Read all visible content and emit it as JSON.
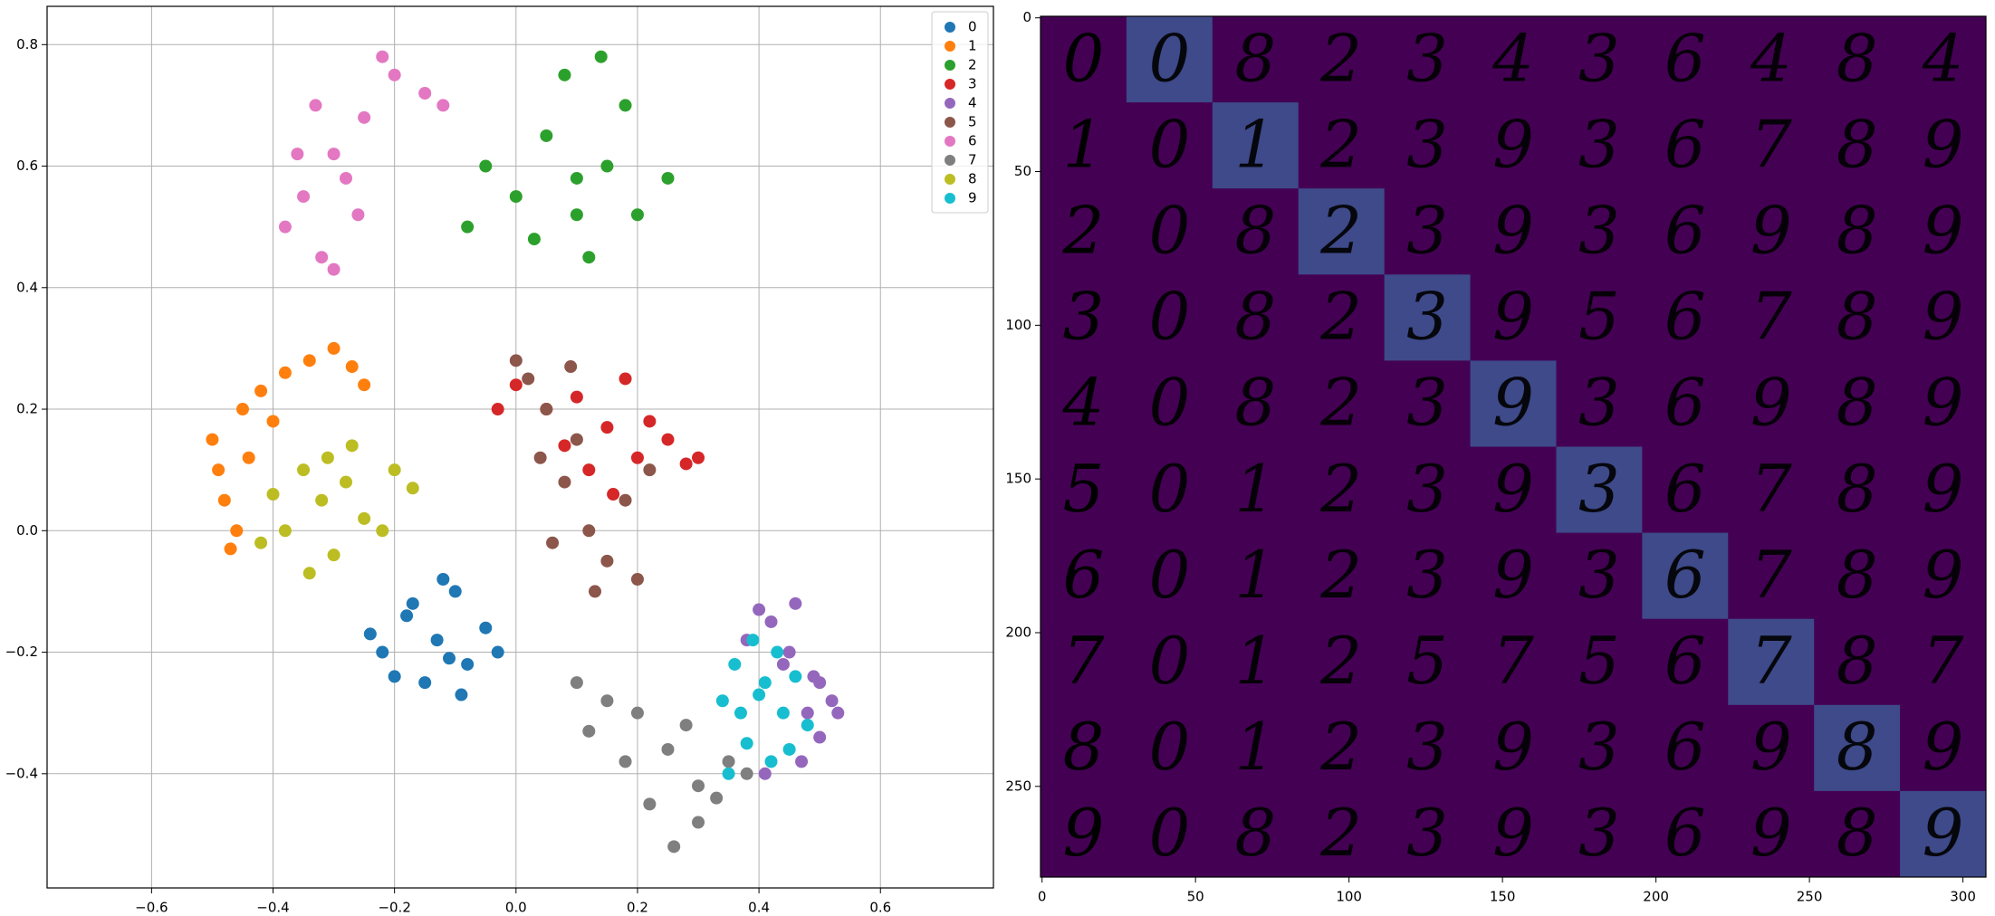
{
  "chart_data": [
    {
      "type": "scatter",
      "grid": true,
      "legend": "upper right",
      "xlim": [
        -0.772,
        0.786
      ],
      "ylim": [
        -0.588,
        0.863
      ],
      "xticks": [
        {
          "value": -0.6,
          "label": "−0.6"
        },
        {
          "value": -0.4,
          "label": "−0.4"
        },
        {
          "value": -0.2,
          "label": "−0.2"
        },
        {
          "value": 0,
          "label": "0.0"
        },
        0.2,
        0.4,
        0.6
      ],
      "yticks": [
        {
          "value": -0.4,
          "label": "−0.4"
        },
        {
          "value": -0.2,
          "label": "−0.2"
        },
        {
          "value": 0,
          "label": "0.0"
        },
        0.2,
        0.4,
        0.6,
        0.8
      ],
      "series": [
        {
          "name": "0",
          "color": "#1f77b4",
          "x": [
            -0.13,
            -0.18,
            -0.08,
            -0.22,
            -0.1,
            -0.15,
            -0.05,
            -0.2,
            -0.12,
            -0.03,
            -0.17,
            -0.09,
            -0.24,
            -0.11
          ],
          "y": [
            -0.18,
            -0.14,
            -0.22,
            -0.2,
            -0.1,
            -0.25,
            -0.16,
            -0.24,
            -0.08,
            -0.2,
            -0.12,
            -0.27,
            -0.17,
            -0.21
          ]
        },
        {
          "name": "1",
          "color": "#ff7f0e",
          "x": [
            -0.5,
            -0.48,
            -0.45,
            -0.42,
            -0.38,
            -0.34,
            -0.3,
            -0.27,
            -0.25,
            -0.47,
            -0.49,
            -0.44,
            -0.4,
            -0.46
          ],
          "y": [
            0.15,
            0.05,
            0.2,
            0.23,
            0.26,
            0.28,
            0.3,
            0.27,
            0.24,
            -0.03,
            0.1,
            0.12,
            0.18,
            0.0
          ]
        },
        {
          "name": "2",
          "color": "#2ca02c",
          "x": [
            0.1,
            0.05,
            0.15,
            0.0,
            0.2,
            0.08,
            0.12,
            -0.05,
            0.25,
            0.03,
            0.18,
            0.1,
            -0.08,
            0.14
          ],
          "y": [
            0.58,
            0.65,
            0.6,
            0.55,
            0.52,
            0.75,
            0.45,
            0.6,
            0.58,
            0.48,
            0.7,
            0.52,
            0.5,
            0.78
          ]
        },
        {
          "name": "3",
          "color": "#d62728",
          "x": [
            0.15,
            0.2,
            0.1,
            0.25,
            0.05,
            -0.03,
            0.28,
            0.18,
            0.12,
            0.22,
            0.0,
            0.3,
            0.16,
            0.08
          ],
          "y": [
            0.17,
            0.12,
            0.22,
            0.15,
            0.2,
            0.2,
            0.11,
            0.25,
            0.1,
            0.18,
            0.24,
            0.12,
            0.06,
            0.14
          ]
        },
        {
          "name": "4",
          "color": "#9467bd",
          "x": [
            0.45,
            0.5,
            0.48,
            0.42,
            0.52,
            0.4,
            0.47,
            0.44,
            0.38,
            0.5,
            0.53,
            0.46,
            0.41,
            0.49
          ],
          "y": [
            -0.2,
            -0.25,
            -0.3,
            -0.15,
            -0.28,
            -0.13,
            -0.38,
            -0.22,
            -0.18,
            -0.34,
            -0.3,
            -0.12,
            -0.4,
            -0.24
          ]
        },
        {
          "name": "5",
          "color": "#8c564b",
          "x": [
            0.08,
            0.05,
            0.12,
            0.02,
            0.15,
            0.1,
            0.2,
            0.06,
            0.18,
            0.13,
            0.0,
            0.22,
            0.09,
            0.04
          ],
          "y": [
            0.08,
            0.2,
            0.0,
            0.25,
            -0.05,
            0.15,
            -0.08,
            -0.02,
            0.05,
            -0.1,
            0.28,
            0.1,
            0.27,
            0.12
          ]
        },
        {
          "name": "6",
          "color": "#e377c2",
          "x": [
            -0.3,
            -0.35,
            -0.25,
            -0.38,
            -0.2,
            -0.32,
            -0.28,
            -0.15,
            -0.36,
            -0.22,
            -0.3,
            -0.33,
            -0.12,
            -0.26
          ],
          "y": [
            0.62,
            0.55,
            0.68,
            0.5,
            0.75,
            0.45,
            0.58,
            0.72,
            0.62,
            0.78,
            0.43,
            0.7,
            0.7,
            0.52
          ]
        },
        {
          "name": "7",
          "color": "#7f7f7f",
          "x": [
            0.25,
            0.2,
            0.3,
            0.15,
            0.35,
            0.22,
            0.28,
            0.1,
            0.38,
            0.18,
            0.3,
            0.26,
            0.12,
            0.33
          ],
          "y": [
            -0.36,
            -0.3,
            -0.42,
            -0.28,
            -0.38,
            -0.45,
            -0.32,
            -0.25,
            -0.4,
            -0.38,
            -0.48,
            -0.52,
            -0.33,
            -0.44
          ]
        },
        {
          "name": "8",
          "color": "#bcbd22",
          "x": [
            -0.32,
            -0.38,
            -0.28,
            -0.35,
            -0.25,
            -0.4,
            -0.3,
            -0.2,
            -0.34,
            -0.27,
            -0.42,
            -0.22,
            -0.31,
            -0.17
          ],
          "y": [
            0.05,
            0.0,
            0.08,
            0.1,
            0.02,
            0.06,
            -0.04,
            0.1,
            -0.07,
            0.14,
            -0.02,
            0.0,
            0.12,
            0.07
          ]
        },
        {
          "name": "9",
          "color": "#17becf",
          "x": [
            0.4,
            0.36,
            0.44,
            0.38,
            0.46,
            0.34,
            0.42,
            0.39,
            0.48,
            0.35,
            0.43,
            0.37,
            0.45,
            0.41
          ],
          "y": [
            -0.27,
            -0.22,
            -0.3,
            -0.35,
            -0.24,
            -0.28,
            -0.38,
            -0.18,
            -0.32,
            -0.4,
            -0.2,
            -0.3,
            -0.36,
            -0.25
          ]
        }
      ]
    },
    {
      "type": "image_grid",
      "highlight_diagonal": true,
      "xlim": [
        -0.5,
        307.5
      ],
      "ylim": [
        279.5,
        -0.5
      ],
      "xticks": [
        0,
        50,
        100,
        150,
        200,
        250,
        300
      ],
      "yticks": [
        0,
        50,
        100,
        150,
        200,
        250
      ],
      "rows": [
        [
          "0",
          "0",
          "8",
          "2",
          "3",
          "4",
          "3",
          "6",
          "4",
          "8",
          "4"
        ],
        [
          "1",
          "0",
          "1",
          "2",
          "3",
          "9",
          "3",
          "6",
          "7",
          "8",
          "9"
        ],
        [
          "2",
          "0",
          "8",
          "2",
          "3",
          "9",
          "3",
          "6",
          "9",
          "8",
          "9"
        ],
        [
          "3",
          "0",
          "8",
          "2",
          "3",
          "9",
          "5",
          "6",
          "7",
          "8",
          "9"
        ],
        [
          "4",
          "0",
          "8",
          "2",
          "3",
          "9",
          "3",
          "6",
          "9",
          "8",
          "9"
        ],
        [
          "5",
          "0",
          "1",
          "2",
          "3",
          "9",
          "3",
          "6",
          "7",
          "8",
          "9"
        ],
        [
          "6",
          "0",
          "1",
          "2",
          "3",
          "9",
          "3",
          "6",
          "7",
          "8",
          "9"
        ],
        [
          "7",
          "0",
          "1",
          "2",
          "5",
          "7",
          "5",
          "6",
          "7",
          "8",
          "7"
        ],
        [
          "8",
          "0",
          "1",
          "2",
          "3",
          "9",
          "3",
          "6",
          "9",
          "8",
          "9"
        ],
        [
          "9",
          "0",
          "8",
          "2",
          "3",
          "9",
          "3",
          "6",
          "9",
          "8",
          "9"
        ]
      ]
    }
  ]
}
